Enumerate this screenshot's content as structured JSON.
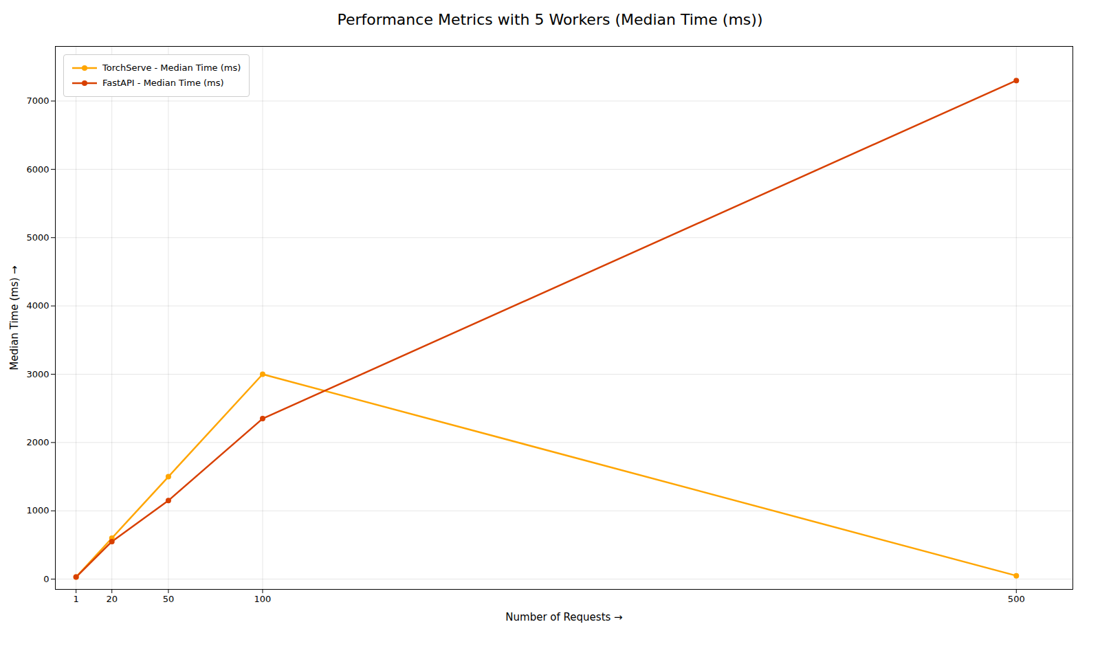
{
  "chart_data": {
    "type": "line",
    "title": "Performance Metrics with 5 Workers (Median Time (ms))",
    "xlabel": "Number of Requests",
    "ylabel": "Median Time (ms)",
    "x": [
      1,
      20,
      50,
      100,
      500
    ],
    "series": [
      {
        "name": "TorchServe - Median Time (ms)",
        "color": "#FFA500",
        "marker": "circle",
        "values": [
          30,
          600,
          1500,
          3000,
          50
        ]
      },
      {
        "name": "FastAPI - Median Time (ms)",
        "color": "#D84000",
        "marker": "circle",
        "values": [
          30,
          550,
          1150,
          2350,
          7300
        ]
      }
    ],
    "xlim": [
      -10,
      530
    ],
    "xticks": [
      1,
      20,
      50,
      100,
      500
    ],
    "ylim": [
      -150,
      7800
    ],
    "yticks": [
      0,
      1000,
      2000,
      3000,
      4000,
      5000,
      6000,
      7000
    ],
    "grid": true,
    "legend": "upper left"
  }
}
